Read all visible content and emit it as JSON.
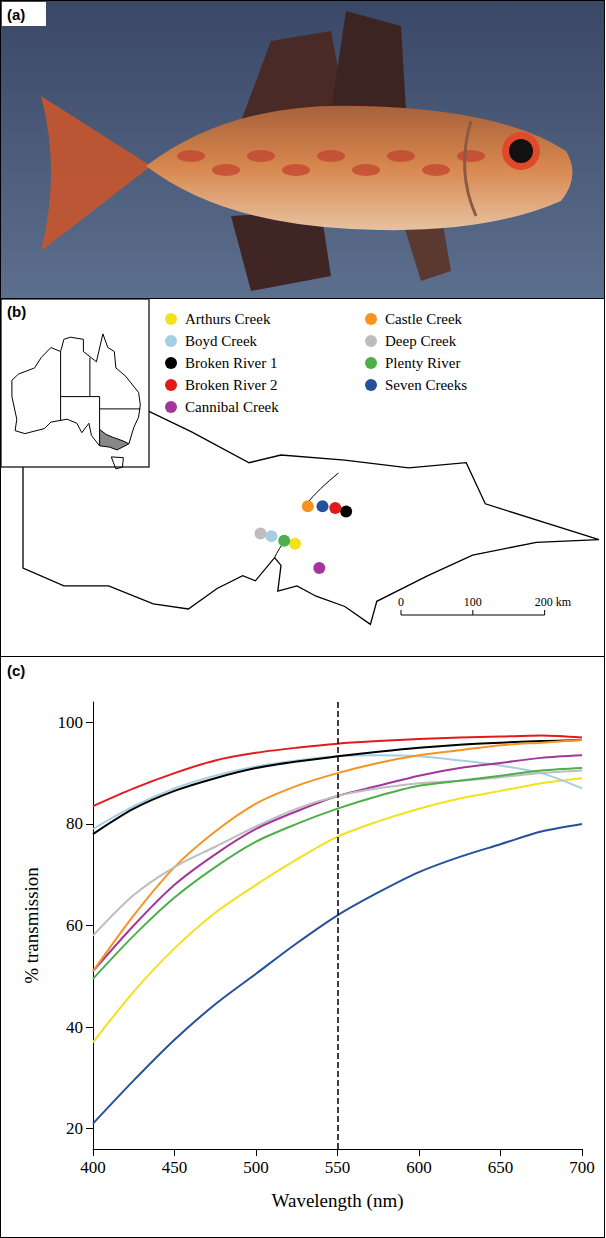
{
  "panels": {
    "a": {
      "label": "(a)"
    },
    "b": {
      "label": "(b)",
      "sites": [
        {
          "name": "Arthurs Creek",
          "lon": 145.22,
          "lat": -37.58
        },
        {
          "name": "Boyd Creek",
          "lon": 144.85,
          "lat": -37.43
        },
        {
          "name": "Broken River 1",
          "lon": 146.02,
          "lat": -36.95
        },
        {
          "name": "Broken River 2",
          "lon": 145.85,
          "lat": -36.88
        },
        {
          "name": "Cannibal Creek",
          "lon": 145.6,
          "lat": -38.05
        },
        {
          "name": "Castle Creek",
          "lon": 145.42,
          "lat": -36.85
        },
        {
          "name": "Deep Creek",
          "lon": 144.68,
          "lat": -37.38
        },
        {
          "name": "Plenty River",
          "lon": 145.05,
          "lat": -37.52
        },
        {
          "name": "Seven Creeks",
          "lon": 145.65,
          "lat": -36.85
        }
      ],
      "scale_bar": {
        "ticks": [
          0,
          100,
          {
            "value": 200,
            "label": "200 km"
          }
        ]
      }
    },
    "c": {
      "label": "(c)"
    }
  },
  "chart_data": {
    "type": "line",
    "x_label": "Wavelength (nm)",
    "y_label": "% transmission",
    "x": [
      400,
      425,
      450,
      475,
      500,
      525,
      550,
      575,
      600,
      625,
      650,
      675,
      700
    ],
    "series": [
      {
        "name": "Arthurs Creek",
        "color": "#f2e21c",
        "values": [
          37,
          47,
          55.5,
          62.5,
          68,
          73,
          77.5,
          80.5,
          83,
          85,
          86.5,
          88,
          89
        ]
      },
      {
        "name": "Boyd Creek",
        "color": "#a6cee3",
        "values": [
          79,
          83.5,
          87,
          89.5,
          91.3,
          92.5,
          93.3,
          93.5,
          93.3,
          92.5,
          91.5,
          90,
          87
        ]
      },
      {
        "name": "Broken River 1",
        "color": "#000000",
        "values": [
          78,
          83,
          86.5,
          89,
          91,
          92.3,
          93.3,
          94.2,
          95,
          95.6,
          96,
          96.3,
          96.5
        ]
      },
      {
        "name": "Broken River 2",
        "color": "#e31a1c",
        "values": [
          83.5,
          87,
          90,
          92.5,
          94,
          95,
          95.8,
          96.3,
          96.7,
          97,
          97.2,
          97.4,
          97
        ]
      },
      {
        "name": "Cannibal Creek",
        "color": "#a3359c",
        "values": [
          51,
          60,
          68,
          74,
          79,
          82.5,
          85.5,
          87.5,
          89.5,
          91,
          92,
          93,
          93.5
        ]
      },
      {
        "name": "Castle Creek",
        "color": "#f7931e",
        "values": [
          51,
          62,
          71.5,
          78.5,
          84,
          87.5,
          90,
          92,
          93.5,
          94.5,
          95.5,
          96,
          96.5
        ]
      },
      {
        "name": "Deep Creek",
        "color": "#bdbdbd",
        "values": [
          58,
          66,
          71.5,
          75.5,
          79.5,
          83,
          85.5,
          87,
          88,
          88.5,
          89.2,
          90,
          90.5
        ]
      },
      {
        "name": "Plenty River",
        "color": "#4daf4a",
        "values": [
          49.5,
          58,
          65.5,
          71.5,
          76.5,
          80,
          83,
          85.5,
          87.5,
          88.5,
          89.5,
          90.5,
          91
        ]
      },
      {
        "name": "Seven Creeks",
        "color": "#24509c",
        "values": [
          21,
          29.5,
          37.5,
          44.5,
          50.5,
          56.5,
          62,
          66.5,
          70.5,
          73.5,
          76,
          78.5,
          80
        ]
      }
    ],
    "reference_x": 550,
    "xlim": [
      400,
      700
    ],
    "xticks": [
      400,
      450,
      500,
      550,
      600,
      650,
      700
    ],
    "ylim": [
      16,
      104
    ],
    "yticks": [
      20,
      40,
      60,
      80,
      100
    ],
    "grid": false
  }
}
